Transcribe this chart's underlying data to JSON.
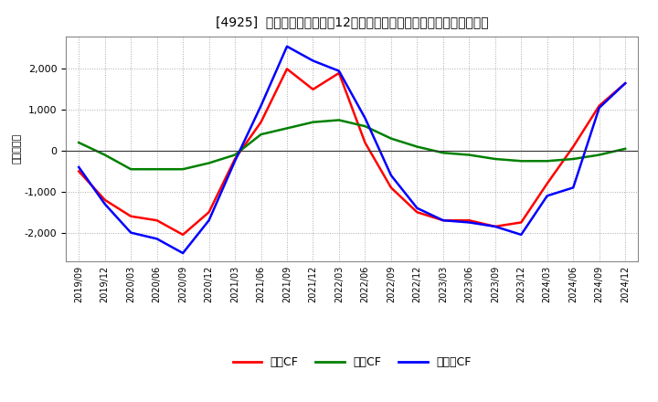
{
  "title": "[4925]  キャッシュフローの12か月移動合計の対前年同期増減額の推移",
  "ylabel": "（百万円）",
  "background_color": "#ffffff",
  "plot_bg_color": "#ffffff",
  "grid_color": "#aaaaaa",
  "x_labels": [
    "2019/09",
    "2019/12",
    "2020/03",
    "2020/06",
    "2020/09",
    "2020/12",
    "2021/03",
    "2021/06",
    "2021/09",
    "2021/12",
    "2022/03",
    "2022/06",
    "2022/09",
    "2022/12",
    "2023/03",
    "2023/06",
    "2023/09",
    "2023/12",
    "2024/03",
    "2024/06",
    "2024/09",
    "2024/12"
  ],
  "operating_cf": [
    -500,
    -1200,
    -1600,
    -1700,
    -2050,
    -1500,
    -200,
    700,
    2000,
    1500,
    1900,
    200,
    -900,
    -1500,
    -1700,
    -1700,
    -1850,
    -1750,
    -800,
    100,
    1100,
    1650
  ],
  "investing_cf": [
    200,
    -100,
    -450,
    -450,
    -450,
    -300,
    -100,
    400,
    550,
    700,
    750,
    600,
    300,
    100,
    -50,
    -100,
    -200,
    -250,
    -250,
    -200,
    -100,
    50
  ],
  "free_cf": [
    -400,
    -1300,
    -2000,
    -2150,
    -2500,
    -1700,
    -250,
    1100,
    2550,
    2200,
    1950,
    800,
    -600,
    -1400,
    -1700,
    -1750,
    -1850,
    -2050,
    -1100,
    -900,
    1050,
    1650
  ],
  "operating_color": "#ff0000",
  "investing_color": "#008000",
  "free_color": "#0000ff",
  "ylim": [
    -2700,
    2800
  ],
  "yticks": [
    -2000,
    -1000,
    0,
    1000,
    2000
  ],
  "line_width": 1.8,
  "legend_labels": [
    "営業CF",
    "投資CF",
    "フリーCF"
  ]
}
